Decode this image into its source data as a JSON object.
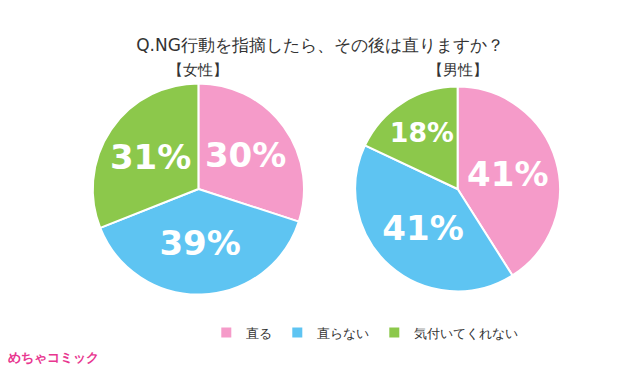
{
  "title": "Q.NG行動を指摘したら、その後は直りますか？",
  "logo": "めちゃコミック",
  "chart_data": [
    {
      "type": "pie",
      "title": "【女性】",
      "categories": [
        "直る",
        "直らない",
        "気付いてくれない"
      ],
      "values": [
        30,
        39,
        31
      ],
      "value_labels": [
        "30%",
        "39%",
        "31%"
      ],
      "colors": [
        "#f59bc9",
        "#5ec4f2",
        "#8cc84b"
      ],
      "data_labels": true,
      "legend": "bottom"
    },
    {
      "type": "pie",
      "title": "【男性】",
      "categories": [
        "直る",
        "直らない",
        "気付いてくれない"
      ],
      "values": [
        41,
        41,
        18
      ],
      "value_labels": [
        "41%",
        "41%",
        "18%"
      ],
      "colors": [
        "#f59bc9",
        "#5ec4f2",
        "#8cc84b"
      ],
      "data_labels": true,
      "legend": "bottom"
    }
  ]
}
